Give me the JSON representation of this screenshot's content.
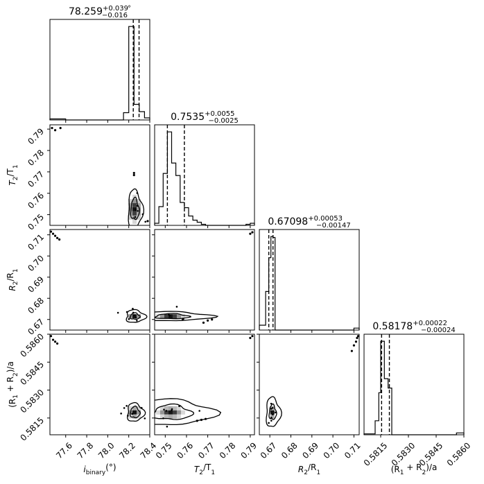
{
  "chart_data": {
    "type": "corner",
    "parameters": [
      {
        "key": "i_binary",
        "axis_label": {
          "main": "i",
          "sub": "binary",
          "suffix": "(°)"
        },
        "title": {
          "value": "78.259",
          "plus": "+0.039",
          "minus": "−0.016",
          "suffix": "°"
        },
        "range": [
          77.45,
          78.4
        ],
        "ticks": [
          77.6,
          77.8,
          78.0,
          78.2,
          78.4
        ],
        "tick_labels": [
          "77.6",
          "77.8",
          "78.0",
          "78.2",
          "78.4"
        ],
        "quantiles": [
          78.243,
          78.298
        ],
        "hist": {
          "edges": [
            77.45,
            77.6,
            78.15,
            78.2,
            78.25,
            78.3,
            78.35,
            78.4
          ],
          "counts": [
            0.01,
            0.0,
            0.07,
            0.9,
            0.15,
            0.08,
            0.02
          ]
        }
      },
      {
        "key": "T2_T1",
        "axis_label": {
          "main": "T",
          "sub": "2",
          "mid": "/T",
          "sub2": "1",
          "suffix": ""
        },
        "title": {
          "value": "0.7535",
          "plus": "+0.0055",
          "minus": "−0.0025",
          "suffix": ""
        },
        "range": [
          0.745,
          0.792
        ],
        "ticks": [
          0.75,
          0.76,
          0.77,
          0.78,
          0.79
        ],
        "tick_labels": [
          "0.75",
          "0.76",
          "0.77",
          "0.78",
          "0.79"
        ],
        "quantiles": [
          0.751,
          0.759
        ],
        "hist": {
          "edges": [
            0.745,
            0.747,
            0.749,
            0.751,
            0.753,
            0.755,
            0.757,
            0.759,
            0.761,
            0.763,
            0.765,
            0.767,
            0.769,
            0.771,
            0.788,
            0.79,
            0.792
          ],
          "counts": [
            0.02,
            0.18,
            0.5,
            0.9,
            0.6,
            0.48,
            0.22,
            0.17,
            0.09,
            0.05,
            0.03,
            0.01,
            0.0,
            0.0,
            0.01,
            0.02
          ]
        }
      },
      {
        "key": "R2_R1",
        "axis_label": {
          "main": "R",
          "sub": "2",
          "mid": "/R",
          "sub2": "1",
          "suffix": ""
        },
        "title": {
          "value": "0.67098",
          "plus": "+0.00053",
          "minus": "−0.00147",
          "suffix": ""
        },
        "range": [
          0.665,
          0.7125
        ],
        "ticks": [
          0.67,
          0.68,
          0.69,
          0.7,
          0.71
        ],
        "tick_labels": [
          "0.67",
          "0.68",
          "0.69",
          "0.70",
          "0.71"
        ],
        "quantiles": [
          0.6695,
          0.6715
        ],
        "hist": {
          "edges": [
            0.665,
            0.668,
            0.6695,
            0.6705,
            0.6715,
            0.6725,
            0.674,
            0.71,
            0.7125
          ],
          "counts": [
            0.05,
            0.4,
            0.75,
            0.97,
            0.96,
            0.0,
            0.0,
            0.02
          ]
        }
      },
      {
        "key": "R1R2_a",
        "axis_label": {
          "main": "(R",
          "sub": "1",
          "mid": " + R",
          "sub2": "2",
          "suffix": ")/a"
        },
        "title": {
          "value": "0.58178",
          "plus": "+0.00022",
          "minus": "−0.00024",
          "suffix": ""
        },
        "range": [
          0.5806,
          0.586
        ],
        "ticks": [
          0.5815,
          0.583,
          0.5845,
          0.586
        ],
        "tick_labels": [
          "0.5815",
          "0.5830",
          "0.5845",
          "0.5860"
        ],
        "quantiles": [
          0.58155,
          0.58197
        ],
        "hist": {
          "edges": [
            0.5806,
            0.5812,
            0.5814,
            0.5815,
            0.5817,
            0.5819,
            0.5821,
            0.5823,
            0.5856,
            0.586
          ],
          "counts": [
            0.01,
            0.15,
            0.45,
            1.0,
            0.6,
            0.5,
            0.0,
            0.0,
            0.02
          ]
        }
      }
    ],
    "samples_2d": [
      {
        "x": 0,
        "y": 1,
        "center": [
          78.255,
          0.7525
        ],
        "spread": [
          0.04,
          0.004
        ],
        "levels": [
          [
            0.035,
            0.005
          ],
          [
            0.06,
            0.009
          ]
        ],
        "outliers": [
          [
            77.47,
            0.7905
          ],
          [
            77.5,
            0.7895
          ],
          [
            77.55,
            0.7905
          ],
          [
            78.25,
            0.7695
          ],
          [
            78.25,
            0.7685
          ],
          [
            78.38,
            0.747
          ]
        ]
      },
      {
        "x": 0,
        "y": 2,
        "center": [
          78.255,
          0.6715
        ],
        "spread": [
          0.04,
          0.001
        ],
        "levels": [
          [
            0.04,
            0.0015
          ],
          [
            0.08,
            0.003
          ]
        ],
        "outliers": [
          [
            77.46,
            0.7115
          ],
          [
            77.48,
            0.7105
          ],
          [
            77.5,
            0.7095
          ],
          [
            77.52,
            0.7085
          ],
          [
            77.54,
            0.7078
          ]
        ]
      },
      {
        "x": 0,
        "y": 3,
        "center": [
          78.255,
          0.5818
        ],
        "spread": [
          0.04,
          0.0002
        ],
        "levels": [
          [
            0.04,
            0.0003
          ],
          [
            0.07,
            0.0005
          ]
        ],
        "outliers": [
          [
            77.46,
            0.5859
          ],
          [
            77.48,
            0.5857
          ],
          [
            77.5,
            0.5856
          ],
          [
            77.52,
            0.5855
          ]
        ]
      },
      {
        "x": 1,
        "y": 2,
        "center": [
          0.7525,
          0.6715
        ],
        "spread": [
          0.004,
          0.001
        ],
        "levels": [
          [
            0.007,
            0.0012
          ],
          [
            0.015,
            0.0022
          ]
        ],
        "outliers": [
          [
            0.77,
            0.6695
          ],
          [
            0.772,
            0.67
          ],
          [
            0.768,
            0.6685
          ],
          [
            0.79,
            0.7105
          ],
          [
            0.791,
            0.7112
          ]
        ]
      },
      {
        "x": 1,
        "y": 3,
        "center": [
          0.7525,
          0.5818
        ],
        "spread": [
          0.004,
          0.0002
        ],
        "levels": [
          [
            0.008,
            0.0004
          ],
          [
            0.016,
            0.0007
          ]
        ],
        "outliers": [
          [
            0.765,
            0.58135
          ],
          [
            0.767,
            0.5814
          ],
          [
            0.769,
            0.58145
          ],
          [
            0.79,
            0.5858
          ],
          [
            0.791,
            0.5859
          ]
        ]
      },
      {
        "x": 2,
        "y": 3,
        "center": [
          0.6712,
          0.5818
        ],
        "spread": [
          0.001,
          0.0002
        ],
        "levels": [
          [
            0.0015,
            0.0004
          ],
          [
            0.003,
            0.0008
          ]
        ],
        "outliers": [
          [
            0.709,
            0.5851
          ],
          [
            0.71,
            0.5854
          ],
          [
            0.711,
            0.5856
          ],
          [
            0.7115,
            0.5858
          ],
          [
            0.712,
            0.5859
          ]
        ]
      }
    ]
  }
}
